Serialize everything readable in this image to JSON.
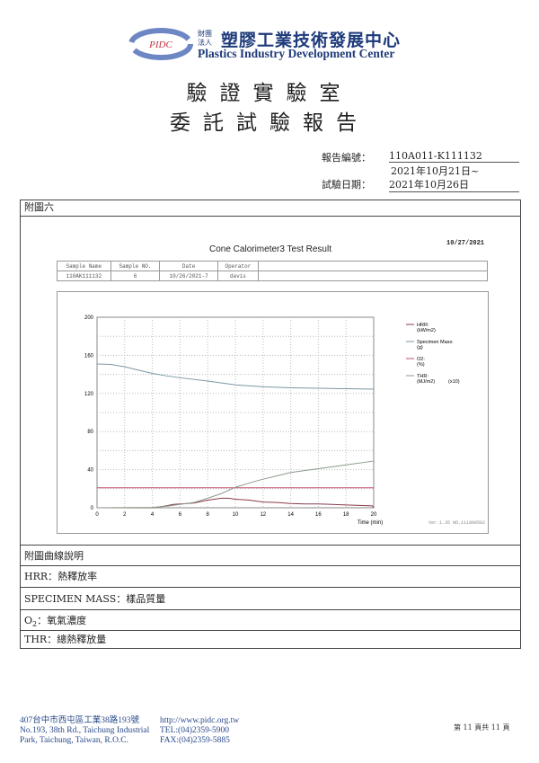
{
  "header": {
    "logo_badge": "PIDC",
    "logo_small": [
      "財團",
      "法人"
    ],
    "org_cn": "塑膠工業技術發展中心",
    "org_en": "Plastics Industry Development Center"
  },
  "titles": {
    "line1": "驗證實驗室",
    "line2": "委託試驗報告"
  },
  "report_info": {
    "report_no_label": "報告編號：",
    "report_no": "110A011-K111132",
    "date_start": "2021年10月21日~",
    "test_date_label": "試驗日期：",
    "test_date_end": "2021年10月26日"
  },
  "section_label": "附圖六",
  "chart_header": {
    "title": "Cone Calorimeter3 Test Result",
    "print_date": "10/27/2021",
    "sample_table": {
      "headers": [
        "Sample Name",
        "Sample NO.",
        "Date",
        "Operator",
        ""
      ],
      "values": [
        "110AK111132",
        "6",
        "10/26/2021-7",
        "davis",
        ""
      ]
    },
    "version": "Ver.1.35 NO.111000502"
  },
  "chart_data": {
    "type": "line",
    "xlabel": "Time (min)",
    "ylabel": "",
    "xlim": [
      0,
      20
    ],
    "ylim": [
      0,
      200
    ],
    "xticks": [
      0,
      2,
      4,
      6,
      8,
      10,
      12,
      14,
      16,
      18,
      20
    ],
    "yticks": [
      0,
      40,
      80,
      120,
      160,
      200
    ],
    "grid": true,
    "legend_placement": "right",
    "series": [
      {
        "name": "HRR:",
        "unit": "(kW/m2)",
        "color": "#8b3a4a",
        "x": [
          0,
          4,
          4.5,
          5,
          5.5,
          6,
          7,
          8,
          9,
          9.5,
          10,
          11,
          12,
          13,
          14,
          15,
          16,
          17,
          18,
          19,
          19.9,
          20
        ],
        "y": [
          0,
          0,
          1,
          2,
          3.5,
          4,
          5,
          8,
          10,
          10,
          9,
          8,
          6,
          5.5,
          4.5,
          4,
          4,
          3.5,
          3,
          2.5,
          2,
          0
        ]
      },
      {
        "name": "Specimen Mass:",
        "unit": "(g)",
        "color": "#7b97a6",
        "x": [
          0,
          1,
          2,
          3,
          4,
          5,
          6,
          8,
          10,
          12,
          14,
          16,
          18,
          20
        ],
        "y": [
          151,
          150.5,
          148,
          144.5,
          141,
          138.5,
          136.5,
          133,
          129,
          127,
          126,
          125.5,
          125,
          124.5
        ]
      },
      {
        "name": "O2:",
        "unit": "(%)",
        "color": "#c0506a",
        "x": [
          0,
          20
        ],
        "y": [
          21,
          21
        ]
      },
      {
        "name": "THR:",
        "unit": "(MJ/m2)",
        "scale": "(x10)",
        "color": "#8a9a8a",
        "x": [
          0,
          4,
          5,
          6,
          7,
          8,
          9,
          10,
          11,
          12,
          13,
          14,
          16,
          18,
          20
        ],
        "y": [
          0,
          0.3,
          1.5,
          3.5,
          5.5,
          10,
          15,
          21.5,
          26,
          30,
          33.5,
          37,
          41,
          45,
          49
        ]
      }
    ]
  },
  "legend_section": {
    "heading": "附圖曲線說明",
    "items": [
      {
        "key": "HRR",
        "text": "HRR：熱釋放率"
      },
      {
        "key": "SPECIMEN MASS",
        "text": "SPECIMEN MASS：樣品質量"
      },
      {
        "key": "O2",
        "main": "O",
        "sub": "2",
        "rest": "：氧氣濃度"
      },
      {
        "key": "THR",
        "text": "THR：總熱釋放量"
      }
    ]
  },
  "footer": {
    "addr_cn": "407台中市西屯區工業38路193號",
    "addr_en1": "No.193, 38th Rd., Taichung Industrial",
    "addr_en2": "Park, Taichung, Taiwan, R.O.C.",
    "web": "http://www.pidc.org.tw",
    "tel": "TEL:(04)2359-5900",
    "fax": "FAX:(04)2359-5885",
    "page": "第 11 頁共 11 頁"
  }
}
